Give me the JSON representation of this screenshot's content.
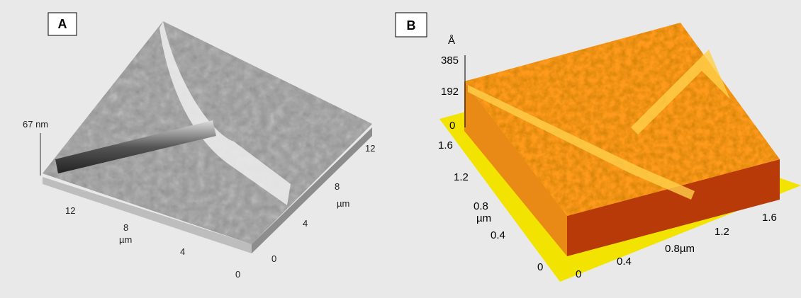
{
  "panel_a": {
    "label": "A",
    "height_label": "67 nm",
    "x_ticks": [
      12,
      8,
      4,
      0
    ],
    "x_unit": "µm",
    "y_ticks": [
      12,
      8,
      4,
      0
    ],
    "y_unit": "µm"
  },
  "panel_b": {
    "label": "B",
    "z_unit": "Å",
    "z_ticks": [
      385,
      192,
      0
    ],
    "y_ticks": [
      1.6,
      1.2,
      0.8,
      0.4,
      0
    ],
    "y_unit": "µm",
    "x_ticks": [
      0,
      0.4,
      "0.8µm",
      1.2,
      1.6
    ]
  }
}
